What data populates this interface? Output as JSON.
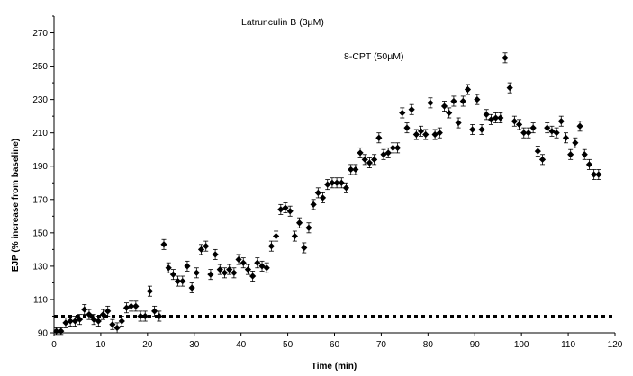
{
  "chart_data": {
    "type": "scatter",
    "title": "",
    "xlabel": "Time (min)",
    "ylabel": "EJP (% increase from baseline)",
    "xlim": [
      0,
      120
    ],
    "ylim": [
      90,
      280
    ],
    "xticks": [
      "0",
      "10",
      "20",
      "30",
      "40",
      "50",
      "60",
      "70",
      "80",
      "90",
      "100",
      "110",
      "120"
    ],
    "yticks": [
      "90",
      "110",
      "130",
      "150",
      "170",
      "190",
      "210",
      "230",
      "250",
      "270"
    ],
    "annotations": [
      "Latrunculin B (3µM)",
      "8-CPT (50µM)"
    ],
    "baseline": {
      "y": 100,
      "x_range": [
        0,
        120
      ],
      "style": "dotted"
    },
    "marker": "diamond",
    "color": "#000000",
    "series": [
      {
        "points": [
          [
            0.5,
            91,
            2
          ],
          [
            1.5,
            91,
            2
          ],
          [
            2.5,
            96,
            3
          ],
          [
            3.5,
            97,
            3
          ],
          [
            4.5,
            97,
            3
          ],
          [
            5.5,
            98,
            3
          ],
          [
            6.5,
            104,
            3
          ],
          [
            7.5,
            101,
            3
          ],
          [
            8.5,
            98,
            3
          ],
          [
            9.5,
            97,
            3
          ],
          [
            10.5,
            101,
            3
          ],
          [
            11.5,
            103,
            3
          ],
          [
            12.5,
            95,
            3
          ],
          [
            13.5,
            93,
            3
          ],
          [
            14.5,
            97,
            3
          ],
          [
            15.5,
            105,
            3
          ],
          [
            16.5,
            106,
            3
          ],
          [
            17.5,
            106,
            3
          ],
          [
            18.5,
            100,
            3
          ],
          [
            19.5,
            100,
            3
          ],
          [
            20.5,
            115,
            3
          ],
          [
            21.5,
            103,
            3
          ],
          [
            22.5,
            100,
            3
          ],
          [
            23.5,
            143,
            3
          ],
          [
            24.5,
            129,
            3
          ],
          [
            25.5,
            125,
            3
          ],
          [
            26.5,
            121,
            3
          ],
          [
            27.5,
            121,
            3
          ],
          [
            28.5,
            130,
            3
          ],
          [
            29.5,
            117,
            3
          ],
          [
            30.5,
            126,
            3
          ],
          [
            31.5,
            140,
            3
          ],
          [
            32.5,
            142,
            3
          ],
          [
            33.5,
            125,
            3
          ],
          [
            34.5,
            137,
            3
          ],
          [
            35.5,
            128,
            3
          ],
          [
            36.5,
            126,
            3
          ],
          [
            37.5,
            128,
            3
          ],
          [
            38.5,
            126,
            3
          ],
          [
            39.5,
            134,
            3
          ],
          [
            40.5,
            132,
            3
          ],
          [
            41.5,
            128,
            3
          ],
          [
            42.5,
            124,
            3
          ],
          [
            43.5,
            132,
            3
          ],
          [
            44.5,
            130,
            3
          ],
          [
            45.5,
            129,
            3
          ],
          [
            46.5,
            142,
            3
          ],
          [
            47.5,
            148,
            3
          ],
          [
            48.5,
            164,
            3
          ],
          [
            49.5,
            165,
            3
          ],
          [
            50.5,
            163,
            3
          ],
          [
            51.5,
            148,
            3
          ],
          [
            52.5,
            156,
            3
          ],
          [
            53.5,
            141,
            3
          ],
          [
            54.5,
            153,
            3
          ],
          [
            55.5,
            167,
            3
          ],
          [
            56.5,
            174,
            3
          ],
          [
            57.5,
            171,
            3
          ],
          [
            58.5,
            179,
            3
          ],
          [
            59.5,
            180,
            3
          ],
          [
            60.5,
            180,
            3
          ],
          [
            61.5,
            180,
            3
          ],
          [
            62.5,
            177,
            3
          ],
          [
            63.5,
            188,
            3
          ],
          [
            64.5,
            188,
            3
          ],
          [
            65.5,
            198,
            3
          ],
          [
            66.5,
            194,
            3
          ],
          [
            67.5,
            192,
            3
          ],
          [
            68.5,
            194,
            3
          ],
          [
            69.5,
            207,
            3
          ],
          [
            70.5,
            197,
            3
          ],
          [
            71.5,
            198,
            3
          ],
          [
            72.5,
            201,
            3
          ],
          [
            73.5,
            201,
            3
          ],
          [
            74.5,
            222,
            3
          ],
          [
            75.5,
            213,
            3
          ],
          [
            76.5,
            224,
            3
          ],
          [
            77.5,
            209,
            3
          ],
          [
            78.5,
            211,
            3
          ],
          [
            79.5,
            209,
            3
          ],
          [
            80.5,
            228,
            3
          ],
          [
            81.5,
            209,
            3
          ],
          [
            82.5,
            210,
            3
          ],
          [
            83.5,
            226,
            3
          ],
          [
            84.5,
            222,
            3
          ],
          [
            85.5,
            229,
            3
          ],
          [
            86.5,
            216,
            3
          ],
          [
            87.5,
            229,
            3
          ],
          [
            88.5,
            236,
            3
          ],
          [
            89.5,
            212,
            3
          ],
          [
            90.5,
            230,
            3
          ],
          [
            91.5,
            212,
            3
          ],
          [
            92.5,
            221,
            3
          ],
          [
            93.5,
            218,
            3
          ],
          [
            94.5,
            219,
            3
          ],
          [
            95.5,
            219,
            3
          ],
          [
            96.5,
            255,
            3
          ],
          [
            97.5,
            237,
            3
          ],
          [
            98.5,
            217,
            3
          ],
          [
            99.5,
            215,
            3
          ],
          [
            100.5,
            210,
            3
          ],
          [
            101.5,
            210,
            3
          ],
          [
            102.5,
            213,
            3
          ],
          [
            103.5,
            199,
            3
          ],
          [
            104.5,
            194,
            3
          ],
          [
            105.5,
            213,
            3
          ],
          [
            106.5,
            211,
            3
          ],
          [
            107.5,
            210,
            3
          ],
          [
            108.5,
            217,
            3
          ],
          [
            109.5,
            207,
            3
          ],
          [
            110.5,
            197,
            3
          ],
          [
            111.5,
            204,
            3
          ],
          [
            112.5,
            214,
            3
          ],
          [
            113.5,
            197,
            3
          ],
          [
            114.5,
            191,
            3
          ],
          [
            115.5,
            185,
            3
          ],
          [
            116.5,
            185,
            3
          ]
        ]
      }
    ]
  }
}
